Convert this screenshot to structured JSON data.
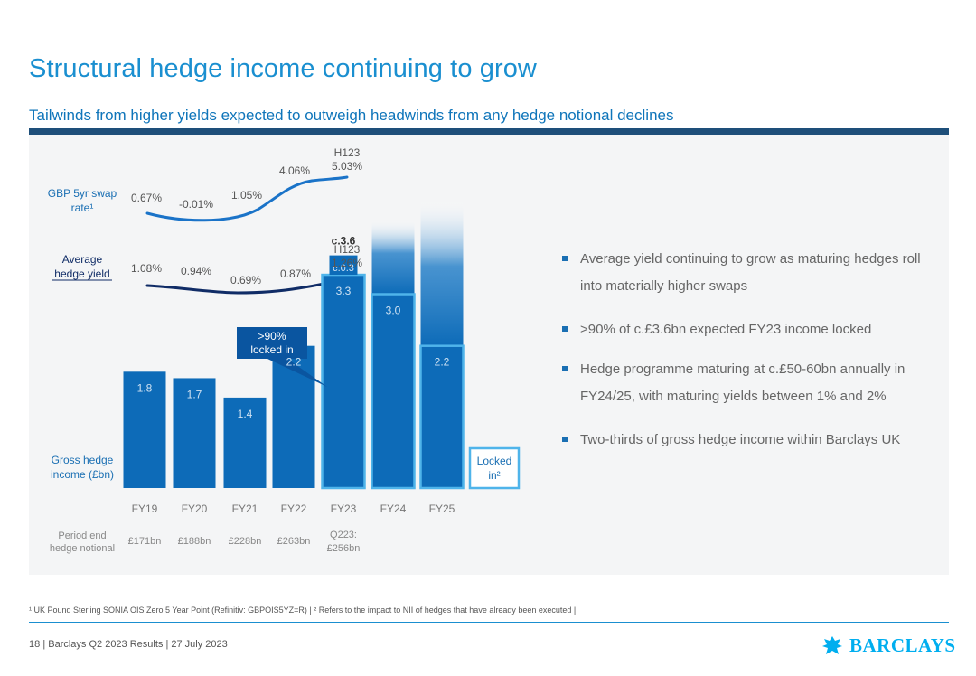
{
  "slide": {
    "title": "Structural hedge income continuing to grow",
    "subtitle": "Tailwinds from higher yields expected to outweigh headwinds from any hedge notional declines"
  },
  "bullets": [
    "Average yield continuing to grow as maturing hedges roll into materially higher swaps",
    ">90% of c.£3.6bn expected FY23 income locked",
    "Hedge programme maturing at c.£50-60bn annually in FY24/25, with maturing yields between 1% and 2%",
    "Two-thirds of gross hedge income within Barclays UK"
  ],
  "footnote": "¹ UK Pound Sterling SONIA OIS Zero 5 Year Point (Refinitiv: GBPOIS5YZ=R) | ² Refers to the impact to NII of hedges that have already been executed |",
  "footer": {
    "page": "18",
    "doc": "Barclays Q2 2023 Results",
    "date": "27 July 2023",
    "logo_text": "BARCLAYS"
  },
  "colors": {
    "title": "#1a8fd0",
    "subtitle": "#0f75ba",
    "bar_dark": "#0d6bb8",
    "bar_locked_border": "#4fb4ea",
    "line_dark": "#102c66",
    "line_blue": "#1a73c8",
    "label_blue": "#1a6fb3"
  },
  "chart_data": {
    "type": "bar",
    "categories": [
      "FY19",
      "FY20",
      "FY21",
      "FY22",
      "FY23",
      "FY24",
      "FY25"
    ],
    "labels": {
      "swap_rate": "GBP 5yr swap rate¹",
      "hedge_yield": "Average hedge yield",
      "gross_income": "Gross hedge income (£bn)",
      "notional": "Period end hedge notional",
      "locked": "Locked in²",
      "callout": ">90% locked in",
      "h1_tag": "H123"
    },
    "swap_rate_points": [
      "0.67%",
      "-0.01%",
      "1.05%",
      "4.06%",
      "5.03%"
    ],
    "swap_rate_values": [
      0.67,
      -0.01,
      1.05,
      4.06,
      5.03
    ],
    "hedge_yield_points": [
      "1.08%",
      "0.94%",
      "0.69%",
      "0.87%",
      "1.26%"
    ],
    "hedge_yield_values": [
      1.08,
      0.94,
      0.69,
      0.87,
      1.26
    ],
    "series": [
      {
        "name": "Gross hedge income (£bn)",
        "values": [
          1.8,
          1.7,
          1.4,
          2.2,
          3.3,
          3.0,
          2.2
        ]
      }
    ],
    "bar_labels": [
      "1.8",
      "1.7",
      "1.4",
      "2.2",
      "3.3",
      "3.0",
      "2.2"
    ],
    "fy23_extra": {
      "value": 0.3,
      "label": "c.0.3",
      "total_label": "c.3.6"
    },
    "notional": [
      "£171bn",
      "£188bn",
      "£228bn",
      "£263bn",
      "Q223:",
      "£256bn"
    ],
    "ylim": [
      0,
      4.6
    ]
  }
}
